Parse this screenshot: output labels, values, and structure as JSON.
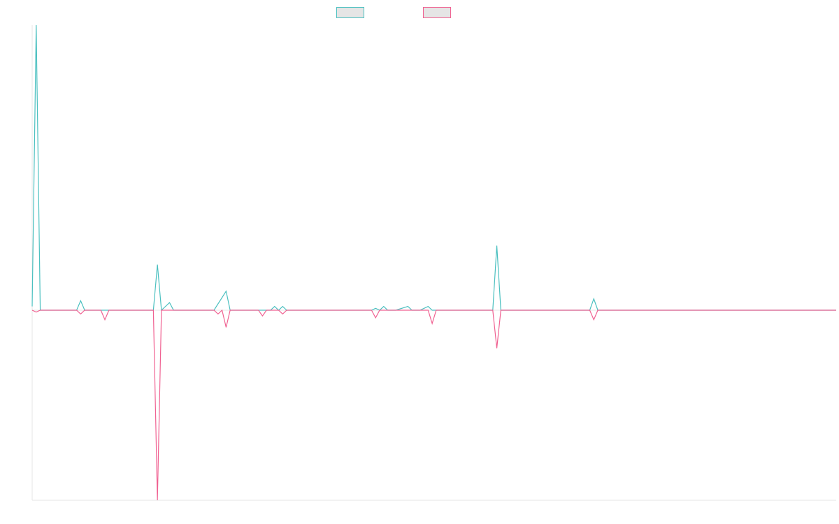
{
  "chart_data": {
    "type": "line",
    "title": "",
    "xlabel": "",
    "ylabel": "",
    "grid": false,
    "legend": {
      "position": "top-center",
      "entries": [
        "",
        ""
      ]
    },
    "ylim": [
      -1.0,
      1.5
    ],
    "x_count": 200,
    "series": [
      {
        "color": "#4bc0c0",
        "fill": "#e5e5e5",
        "points": [
          [
            0,
            0.02
          ],
          [
            1,
            1.5
          ],
          [
            2,
            0
          ],
          [
            5,
            0
          ],
          [
            11,
            0
          ],
          [
            12,
            0.05
          ],
          [
            13,
            0
          ],
          [
            18,
            0
          ],
          [
            21,
            0
          ],
          [
            30,
            0
          ],
          [
            31,
            0.24
          ],
          [
            32,
            0
          ],
          [
            34,
            0.04
          ],
          [
            35,
            0
          ],
          [
            45,
            0
          ],
          [
            48,
            0.1
          ],
          [
            49,
            0
          ],
          [
            59,
            0
          ],
          [
            60,
            0.02
          ],
          [
            61,
            0
          ],
          [
            62,
            0.02
          ],
          [
            63,
            0
          ],
          [
            84,
            0
          ],
          [
            85,
            0.01
          ],
          [
            86,
            0
          ],
          [
            87,
            0.02
          ],
          [
            88,
            0
          ],
          [
            90,
            0
          ],
          [
            93,
            0.02
          ],
          [
            94,
            0
          ],
          [
            96,
            0
          ],
          [
            98,
            0.02
          ],
          [
            99,
            0
          ],
          [
            103,
            0
          ],
          [
            114,
            0
          ],
          [
            115,
            0.34
          ],
          [
            116,
            0
          ],
          [
            138,
            0
          ],
          [
            139,
            0.06
          ],
          [
            140,
            0
          ],
          [
            156,
            0
          ],
          [
            170,
            0
          ],
          [
            176,
            0
          ],
          [
            189,
            0
          ],
          [
            199,
            0
          ]
        ]
      },
      {
        "color": "#f06292",
        "fill": "#e5e5e5",
        "points": [
          [
            0,
            0
          ],
          [
            1,
            -0.01
          ],
          [
            2,
            0
          ],
          [
            5,
            0
          ],
          [
            11,
            0
          ],
          [
            12,
            -0.02
          ],
          [
            13,
            0
          ],
          [
            17,
            0
          ],
          [
            18,
            -0.05
          ],
          [
            19,
            0
          ],
          [
            21,
            0
          ],
          [
            30,
            0
          ],
          [
            31,
            -1.0
          ],
          [
            32,
            0
          ],
          [
            45,
            0
          ],
          [
            46,
            -0.02
          ],
          [
            47,
            0
          ],
          [
            48,
            -0.09
          ],
          [
            49,
            0
          ],
          [
            56,
            0
          ],
          [
            57,
            -0.03
          ],
          [
            58,
            0
          ],
          [
            61,
            0
          ],
          [
            62,
            -0.02
          ],
          [
            63,
            0
          ],
          [
            84,
            0
          ],
          [
            85,
            -0.04
          ],
          [
            86,
            0
          ],
          [
            98,
            0
          ],
          [
            99,
            -0.07
          ],
          [
            100,
            0
          ],
          [
            103,
            0
          ],
          [
            114,
            0
          ],
          [
            115,
            -0.2
          ],
          [
            116,
            0
          ],
          [
            138,
            0
          ],
          [
            139,
            -0.05
          ],
          [
            140,
            0
          ],
          [
            156,
            0
          ],
          [
            170,
            0
          ],
          [
            176,
            0
          ],
          [
            189,
            0
          ],
          [
            199,
            0
          ]
        ]
      }
    ]
  }
}
